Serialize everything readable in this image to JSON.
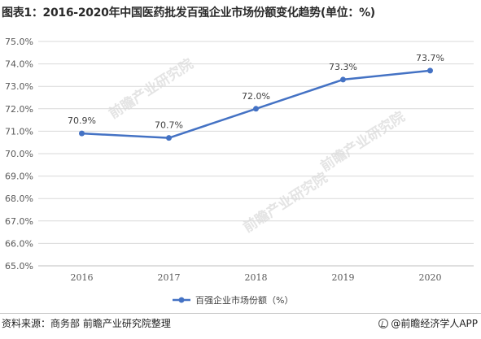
{
  "title": "图表1：2016-2020年中国医药批发百强企业市场份额变化趋势(单位：%)",
  "source": "资料来源：商务部 前瞻产业研究院整理",
  "brand": "@前瞻经济学人APP",
  "watermark": "前瞻产业研究院",
  "colors": {
    "series": "#4472C4",
    "grid": "#d9d9d9",
    "axis_text": "#595959"
  },
  "chart_data": {
    "type": "line",
    "categories": [
      "2016",
      "2017",
      "2018",
      "2019",
      "2020"
    ],
    "series": [
      {
        "name": "百强企业市场份额（%）",
        "values": [
          70.9,
          70.7,
          72.0,
          73.3,
          73.7
        ],
        "labels": [
          "70.9%",
          "70.7%",
          "72.0%",
          "73.3%",
          "73.7%"
        ]
      }
    ],
    "y_ticks": [
      "65.0%",
      "66.0%",
      "67.0%",
      "68.0%",
      "69.0%",
      "70.0%",
      "71.0%",
      "72.0%",
      "73.0%",
      "74.0%",
      "75.0%"
    ],
    "ylim": [
      65,
      75
    ],
    "grid": true,
    "legend": "bottom"
  }
}
